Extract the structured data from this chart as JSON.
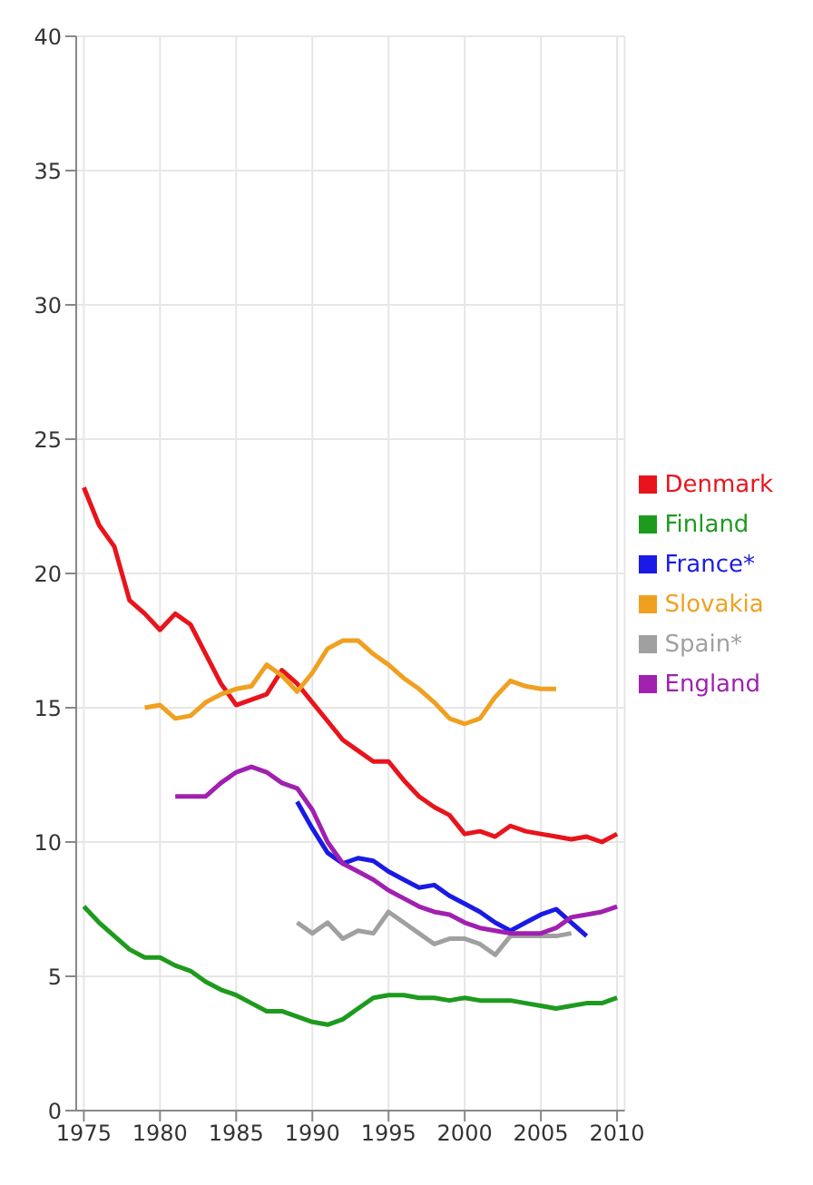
{
  "chart_data": {
    "type": "line",
    "x": [
      1975,
      1976,
      1977,
      1978,
      1979,
      1980,
      1981,
      1982,
      1983,
      1984,
      1985,
      1986,
      1987,
      1988,
      1989,
      1990,
      1991,
      1992,
      1993,
      1994,
      1995,
      1996,
      1997,
      1998,
      1999,
      2000,
      2001,
      2002,
      2003,
      2004,
      2005,
      2006,
      2007,
      2008,
      2009,
      2010
    ],
    "series": [
      {
        "name": "Denmark",
        "color": "#e8141c",
        "values": [
          23.2,
          21.8,
          21.0,
          19.0,
          18.5,
          17.9,
          18.5,
          18.1,
          17.0,
          15.9,
          15.1,
          15.3,
          15.5,
          16.4,
          15.9,
          15.2,
          14.5,
          13.8,
          13.4,
          13.0,
          13.0,
          12.3,
          11.7,
          11.3,
          11.0,
          10.3,
          10.4,
          10.2,
          10.6,
          10.4,
          10.3,
          10.2,
          10.1,
          10.2,
          10.0,
          10.3
        ]
      },
      {
        "name": "Finland",
        "color": "#1e9a1e",
        "values": [
          7.6,
          7.0,
          6.5,
          6.0,
          5.7,
          5.7,
          5.4,
          5.2,
          4.8,
          4.5,
          4.3,
          4.0,
          3.7,
          3.7,
          3.5,
          3.3,
          3.2,
          3.4,
          3.8,
          4.2,
          4.3,
          4.3,
          4.2,
          4.2,
          4.1,
          4.2,
          4.1,
          4.1,
          4.1,
          4.0,
          3.9,
          3.8,
          3.9,
          4.0,
          4.0,
          4.2
        ]
      },
      {
        "name": "France*",
        "color": "#1a1ae6",
        "values": [
          null,
          null,
          null,
          null,
          null,
          null,
          null,
          null,
          null,
          null,
          null,
          null,
          null,
          null,
          11.5,
          10.5,
          9.6,
          9.2,
          9.4,
          9.3,
          8.9,
          8.6,
          8.3,
          8.4,
          8.0,
          7.7,
          7.4,
          7.0,
          6.7,
          7.0,
          7.3,
          7.5,
          7.0,
          6.5,
          null,
          null
        ]
      },
      {
        "name": "Slovakia",
        "color": "#f0a020",
        "values": [
          null,
          null,
          null,
          null,
          15.0,
          15.1,
          14.6,
          14.7,
          15.2,
          15.5,
          15.7,
          15.8,
          16.6,
          16.2,
          15.6,
          16.3,
          17.2,
          17.5,
          17.5,
          17.0,
          16.6,
          16.1,
          15.7,
          15.2,
          14.6,
          14.4,
          14.6,
          15.4,
          16.0,
          15.8,
          15.7,
          15.7,
          null,
          null,
          null,
          null
        ]
      },
      {
        "name": "Spain*",
        "color": "#a0a0a0",
        "values": [
          null,
          null,
          null,
          null,
          null,
          null,
          null,
          null,
          null,
          null,
          null,
          null,
          null,
          null,
          7.0,
          6.6,
          7.0,
          6.4,
          6.7,
          6.6,
          7.4,
          7.0,
          6.6,
          6.2,
          6.4,
          6.4,
          6.2,
          5.8,
          6.5,
          6.5,
          6.5,
          6.5,
          6.6,
          null,
          null,
          null
        ]
      },
      {
        "name": "England",
        "color": "#a020b0",
        "values": [
          null,
          null,
          null,
          null,
          null,
          null,
          11.7,
          11.7,
          11.7,
          12.2,
          12.6,
          12.8,
          12.6,
          12.2,
          12.0,
          11.2,
          10.0,
          9.2,
          8.9,
          8.6,
          8.2,
          7.9,
          7.6,
          7.4,
          7.3,
          7.0,
          6.8,
          6.7,
          6.6,
          6.6,
          6.6,
          6.8,
          7.2,
          7.3,
          7.4,
          7.6
        ]
      }
    ],
    "xlim": [
      1974.5,
      2010.5
    ],
    "xticks": [
      1975,
      1980,
      1985,
      1990,
      1995,
      2000,
      2005,
      2010
    ],
    "ylim": [
      0,
      40
    ],
    "yticks": [
      0,
      5,
      10,
      15,
      20,
      25,
      30,
      35,
      40
    ],
    "grid": true,
    "legend": "right",
    "marker": "none",
    "line_style": "solid"
  }
}
